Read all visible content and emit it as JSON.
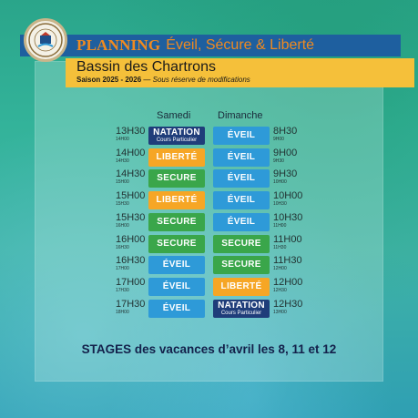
{
  "header": {
    "title_strong": "PLANNING",
    "title_rest": "Éveil, Sécure & Liberté",
    "pool": "Bassin des Chartrons",
    "season": "Saison 2025 - 2026",
    "note": "— Sous réserve de modifications"
  },
  "days": {
    "saturday": "Samedi",
    "sunday": "Dimanche"
  },
  "saturday": [
    {
      "time": "13H30",
      "end": "14H00",
      "label": "NATATION",
      "sub": "Cours Particulier",
      "type": "natation"
    },
    {
      "time": "14H00",
      "end": "14H30",
      "label": "LIBERTÉ",
      "sub": "",
      "type": "liberte"
    },
    {
      "time": "14H30",
      "end": "15H00",
      "label": "SECURE",
      "sub": "",
      "type": "secure"
    },
    {
      "time": "15H00",
      "end": "15H30",
      "label": "LIBERTÉ",
      "sub": "",
      "type": "liberte"
    },
    {
      "time": "15H30",
      "end": "16H00",
      "label": "SECURE",
      "sub": "",
      "type": "secure"
    },
    {
      "time": "16H00",
      "end": "16H30",
      "label": "SECURE",
      "sub": "",
      "type": "secure"
    },
    {
      "time": "16H30",
      "end": "17H00",
      "label": "ÉVEIL",
      "sub": "",
      "type": "eveil"
    },
    {
      "time": "17H00",
      "end": "17H30",
      "label": "ÉVEIL",
      "sub": "",
      "type": "eveil"
    },
    {
      "time": "17H30",
      "end": "18H00",
      "label": "ÉVEIL",
      "sub": "",
      "type": "eveil"
    }
  ],
  "sunday": [
    {
      "time": "8H30",
      "end": "9H00",
      "label": "ÉVEIL",
      "sub": "",
      "type": "eveil"
    },
    {
      "time": "9H00",
      "end": "9H30",
      "label": "ÉVEIL",
      "sub": "",
      "type": "eveil"
    },
    {
      "time": "9H30",
      "end": "10H00",
      "label": "ÉVEIL",
      "sub": "",
      "type": "eveil"
    },
    {
      "time": "10H00",
      "end": "10H30",
      "label": "ÉVEIL",
      "sub": "",
      "type": "eveil"
    },
    {
      "time": "10H30",
      "end": "11H00",
      "label": "ÉVEIL",
      "sub": "",
      "type": "eveil"
    },
    {
      "time": "11H00",
      "end": "11H30",
      "label": "SECURE",
      "sub": "",
      "type": "secure"
    },
    {
      "time": "11H30",
      "end": "12H00",
      "label": "SECURE",
      "sub": "",
      "type": "secure"
    },
    {
      "time": "12H00",
      "end": "12H30",
      "label": "LIBERTÉ",
      "sub": "",
      "type": "liberte"
    },
    {
      "time": "12H30",
      "end": "13H00",
      "label": "NATATION",
      "sub": "Cours Particulier",
      "type": "natation"
    }
  ],
  "stages": "STAGES des vacances d’avril les 8, 11 et 12",
  "colors": {
    "eveil": "#2e9ad8",
    "liberte": "#f6a625",
    "secure": "#3aa64a",
    "natation": "#1f3d7a",
    "header_blue": "#1e5f9f",
    "header_yellow": "#f5c03a"
  }
}
